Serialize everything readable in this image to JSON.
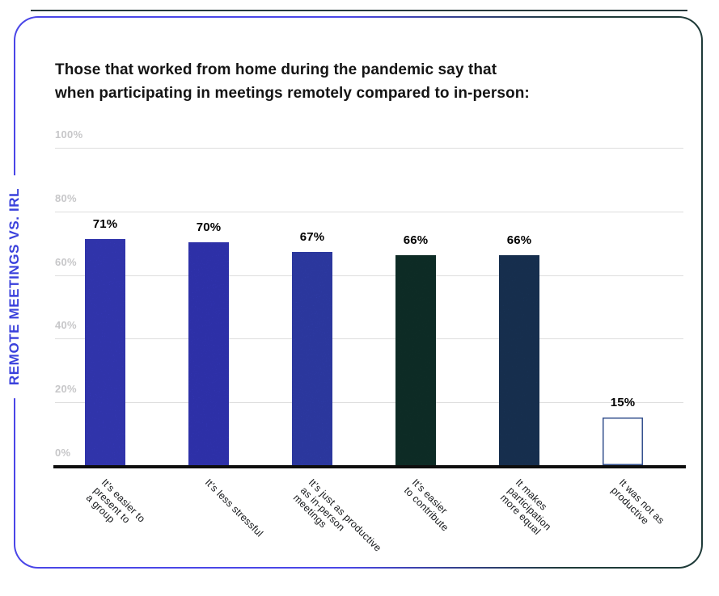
{
  "side_label": "REMOTE MEETINGS VS. IRL",
  "title": {
    "line1": "Those that worked from home during the pandemic say that",
    "line2": "when participating in meetings remotely compared to in-person:"
  },
  "colors": {
    "accent_blue": "#3a41dc",
    "card_border_gradient_start": "#4a46e7",
    "card_border_gradient_end": "#1e3a38",
    "gridline": "#dedede",
    "y_tick_text": "#c7c7c9",
    "axis": "#0e0e0e",
    "value_label_text": "#000000"
  },
  "chart_data": {
    "type": "bar",
    "title": "Those that worked from home during the pandemic say that when participating in meetings remotely compared to in-person:",
    "ylabel": "REMOTE MEETINGS VS. IRL",
    "categories": [
      "It’s easier to present to a group",
      "It’s less stressful",
      "It’s just as productive as in-person meetings",
      "It’s easier to contribute",
      "It makes participation more equal",
      "It was not as productive"
    ],
    "tick_labels_multiline": [
      "It’s easier to\npresent to\na group",
      "It’s less stressful",
      "It’s just as productive\nas in-person\nmeetings",
      "It’s easier\nto contribute",
      "It makes\nparticipation\nmore equal",
      "It was not as\nproductive"
    ],
    "values": [
      71,
      70,
      67,
      66,
      66,
      15
    ],
    "value_labels": [
      "71%",
      "70%",
      "67%",
      "66%",
      "66%",
      "15%"
    ],
    "ylim": [
      0,
      100
    ],
    "y_tick_values": [
      100,
      80,
      60,
      40,
      20,
      0
    ],
    "y_tick_labels": [
      "100%",
      "80%",
      "60%",
      "40%",
      "20%",
      "0%"
    ],
    "grid": "horizontal",
    "legend": "none",
    "bar_styles": [
      {
        "fill": "#3f43db",
        "grain": true
      },
      {
        "fill": "#3b3fd7",
        "grain": true
      },
      {
        "fill": "#3848ca",
        "grain": true
      },
      {
        "fill": "#123830",
        "grain": true
      },
      {
        "fill": "#1d3c64",
        "grain": true
      },
      {
        "fill": "#ffffff",
        "border": "#35518e",
        "grain": false
      }
    ]
  }
}
